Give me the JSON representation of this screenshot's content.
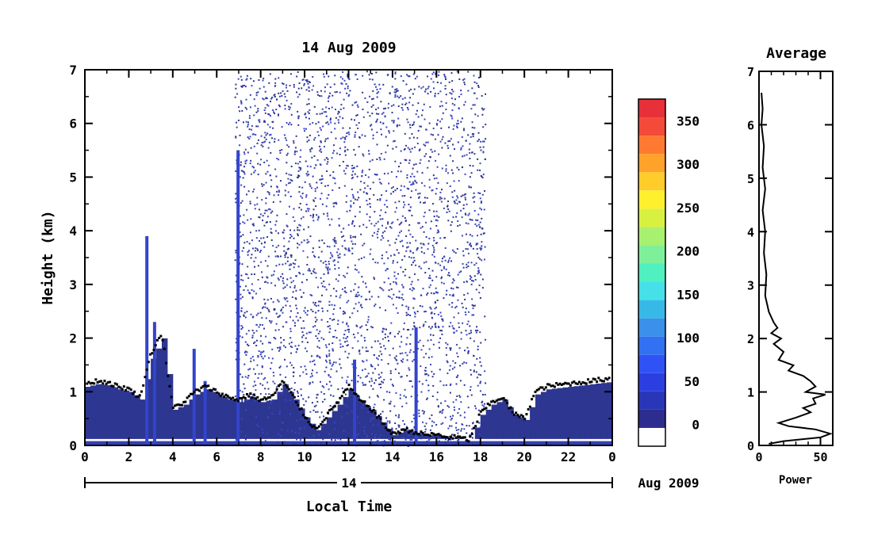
{
  "chart_data": [
    {
      "type": "heatmap",
      "title": "14 Aug 2009",
      "xlabel": "Local Time",
      "ylabel": "Height (km)",
      "x_ticks": [
        "0",
        "2",
        "4",
        "6",
        "8",
        "10",
        "12",
        "14",
        "16",
        "18",
        "20",
        "22",
        "0"
      ],
      "xlim": [
        0,
        24
      ],
      "y_ticks": [
        "0",
        "1",
        "2",
        "3",
        "4",
        "5",
        "6",
        "7"
      ],
      "ylim": [
        0,
        7
      ],
      "date_axis": {
        "day": "14",
        "month_year": "Aug 2009"
      },
      "grid": false,
      "noise_region": {
        "x_range": [
          6.8,
          18.2
        ],
        "y_range": [
          0,
          7
        ],
        "description": "scattered low-level echoes"
      },
      "boundary_layer_top": [
        [
          0.0,
          1.15
        ],
        [
          0.5,
          1.2
        ],
        [
          1.0,
          1.18
        ],
        [
          1.5,
          1.1
        ],
        [
          2.0,
          1.05
        ],
        [
          2.5,
          0.9
        ],
        [
          3.0,
          1.7
        ],
        [
          3.5,
          2.1
        ],
        [
          4.0,
          0.7
        ],
        [
          4.5,
          0.8
        ],
        [
          5.0,
          1.0
        ],
        [
          5.5,
          1.1
        ],
        [
          6.0,
          1.0
        ],
        [
          6.5,
          0.9
        ],
        [
          7.0,
          0.85
        ],
        [
          7.5,
          0.95
        ],
        [
          8.0,
          0.85
        ],
        [
          8.5,
          0.9
        ],
        [
          9.0,
          1.2
        ],
        [
          9.5,
          0.9
        ],
        [
          10.0,
          0.55
        ],
        [
          10.5,
          0.3
        ],
        [
          11.0,
          0.55
        ],
        [
          11.5,
          0.8
        ],
        [
          12.0,
          1.1
        ],
        [
          12.5,
          0.85
        ],
        [
          13.0,
          0.7
        ],
        [
          13.5,
          0.45
        ],
        [
          14.0,
          0.2
        ],
        [
          14.5,
          0.3
        ],
        [
          15.0,
          0.25
        ],
        [
          15.5,
          0.2
        ],
        [
          16.0,
          0.2
        ],
        [
          16.5,
          0.15
        ],
        [
          17.0,
          0.15
        ],
        [
          17.5,
          0.1
        ],
        [
          18.0,
          0.6
        ],
        [
          18.5,
          0.8
        ],
        [
          19.0,
          0.9
        ],
        [
          19.5,
          0.6
        ],
        [
          20.0,
          0.5
        ],
        [
          20.5,
          1.0
        ],
        [
          21.0,
          1.1
        ],
        [
          22.0,
          1.15
        ],
        [
          23.0,
          1.2
        ],
        [
          24.0,
          1.25
        ]
      ],
      "colorbar": {
        "ticks": [
          "0",
          "50",
          "100",
          "150",
          "200",
          "250",
          "300",
          "350"
        ],
        "range": [
          -25,
          375
        ],
        "colors": [
          "#ffffff",
          "#2d2d8f",
          "#2a36b8",
          "#2b3fe0",
          "#2f52f6",
          "#3271f2",
          "#3a90ea",
          "#37b9e8",
          "#45e0e8",
          "#50f0c0",
          "#7ef09a",
          "#a8f070",
          "#d8f040",
          "#fff02e",
          "#ffcc2a",
          "#ffa22a",
          "#ff7a30",
          "#f34a3a",
          "#e8303a"
        ]
      }
    },
    {
      "type": "line",
      "title": "Average",
      "xlabel": "Power",
      "ylabel": "",
      "x_ticks": [
        "0",
        "50"
      ],
      "xlim": [
        0,
        60
      ],
      "y_ticks": [
        "0",
        "1",
        "2",
        "3",
        "4",
        "5",
        "6",
        "7"
      ],
      "ylim": [
        0,
        7
      ],
      "series": [
        {
          "points": [
            [
              2,
              6.6
            ],
            [
              3,
              6.3
            ],
            [
              2,
              6.0
            ],
            [
              4,
              5.6
            ],
            [
              3,
              5.2
            ],
            [
              5,
              4.8
            ],
            [
              3,
              4.4
            ],
            [
              5,
              4.0
            ],
            [
              4,
              3.6
            ],
            [
              6,
              3.2
            ],
            [
              5,
              2.8
            ],
            [
              8,
              2.5
            ],
            [
              12,
              2.3
            ],
            [
              15,
              2.2
            ],
            [
              10,
              2.1
            ],
            [
              18,
              2.0
            ],
            [
              12,
              1.9
            ],
            [
              20,
              1.75
            ],
            [
              16,
              1.6
            ],
            [
              28,
              1.5
            ],
            [
              24,
              1.4
            ],
            [
              36,
              1.3
            ],
            [
              42,
              1.2
            ],
            [
              46,
              1.1
            ],
            [
              38,
              1.0
            ],
            [
              54,
              0.95
            ],
            [
              44,
              0.88
            ],
            [
              46,
              0.78
            ],
            [
              36,
              0.7
            ],
            [
              42,
              0.62
            ],
            [
              30,
              0.52
            ],
            [
              16,
              0.42
            ],
            [
              24,
              0.36
            ],
            [
              46,
              0.3
            ],
            [
              58,
              0.22
            ],
            [
              50,
              0.15
            ],
            [
              20,
              0.08
            ],
            [
              8,
              0.03
            ]
          ]
        }
      ]
    }
  ]
}
